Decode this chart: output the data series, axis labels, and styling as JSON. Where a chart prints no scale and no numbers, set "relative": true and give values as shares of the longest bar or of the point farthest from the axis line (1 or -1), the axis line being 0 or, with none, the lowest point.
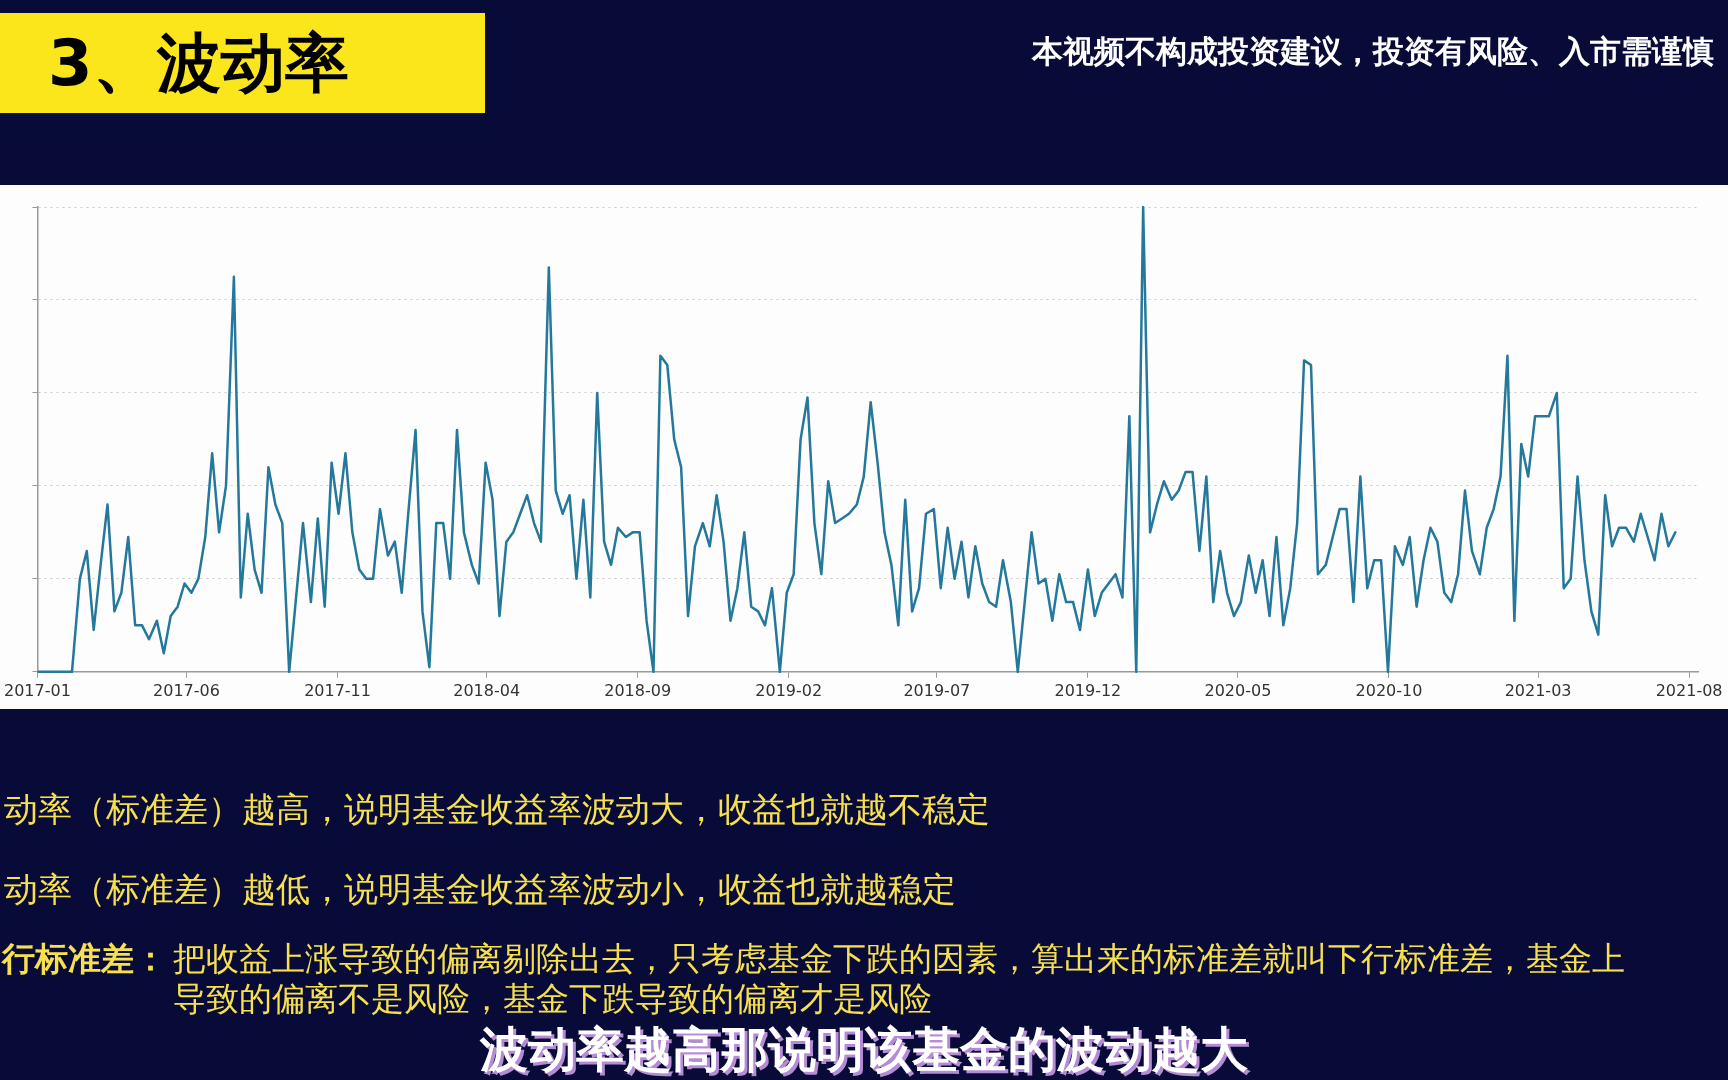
{
  "chart_data": {
    "type": "line",
    "title": "3、波动率",
    "annotations": [
      "本视频不构成投资建议，投资有风险、入市需谨慎",
      "动率（标准差）越高，说明基金收益率波动大，收益也就越不稳定",
      "动率（标准差）越低，说明基金收益率波动小，收益也就越稳定",
      "行标准差：",
      "把收益上涨导致的偏离剔除出去，只考虑基金下跌的因素，算出来的标准差就叫下行标准差，基金上",
      "导致的偏离不是风险，基金下跌导致的偏离才是风险",
      "波动率越高那说明该基金的波动越大"
    ],
    "x": [
      "2017-01-01",
      "2017-01-08",
      "2017-01-15",
      "2017-01-22",
      "2017-01-29",
      "2017-02-05",
      "2017-02-13",
      "2017-02-20",
      "2017-02-27",
      "2017-03-06",
      "2017-03-13",
      "2017-03-20",
      "2017-03-27",
      "2017-04-03",
      "2017-04-10",
      "2017-04-17",
      "2017-04-24",
      "2017-05-02",
      "2017-05-09",
      "2017-05-16",
      "2017-05-23",
      "2017-05-30",
      "2017-06-06",
      "2017-06-13",
      "2017-06-20",
      "2017-06-27",
      "2017-07-04",
      "2017-07-11",
      "2017-07-19",
      "2017-07-26",
      "2017-08-02",
      "2017-08-09",
      "2017-08-16",
      "2017-08-23",
      "2017-08-30",
      "2017-09-06",
      "2017-09-13",
      "2017-09-20",
      "2017-09-27",
      "2017-10-05",
      "2017-10-12",
      "2017-10-19",
      "2017-10-26",
      "2017-11-02",
      "2017-11-09",
      "2017-11-16",
      "2017-11-23",
      "2017-11-30",
      "2017-12-07",
      "2017-12-14",
      "2017-12-22",
      "2017-12-29",
      "2018-01-05",
      "2018-01-12",
      "2018-01-19",
      "2018-01-26",
      "2018-02-02",
      "2018-02-09",
      "2018-02-16",
      "2018-02-23",
      "2018-03-02",
      "2018-03-09",
      "2018-03-17",
      "2018-03-24",
      "2018-03-31",
      "2018-04-07",
      "2018-04-14",
      "2018-04-21",
      "2018-04-28",
      "2018-05-05",
      "2018-05-12",
      "2018-05-19",
      "2018-05-26",
      "2018-06-03",
      "2018-06-10",
      "2018-06-17",
      "2018-06-24",
      "2018-07-01",
      "2018-07-08",
      "2018-07-15",
      "2018-07-22",
      "2018-07-29",
      "2018-08-05",
      "2018-08-12",
      "2018-08-20",
      "2018-08-27",
      "2018-09-03",
      "2018-09-10",
      "2018-09-17",
      "2018-09-24",
      "2018-10-01",
      "2018-10-08",
      "2018-10-15",
      "2018-10-22",
      "2018-10-29",
      "2018-11-06",
      "2018-11-13",
      "2018-11-20",
      "2018-11-27",
      "2018-12-04",
      "2018-12-11",
      "2018-12-18",
      "2018-12-25",
      "2019-01-01",
      "2019-01-08",
      "2019-01-15",
      "2019-01-23",
      "2019-01-30",
      "2019-02-06",
      "2019-02-13",
      "2019-02-20",
      "2019-02-27",
      "2019-03-06",
      "2019-03-13",
      "2019-03-20",
      "2019-03-27",
      "2019-04-03",
      "2019-04-11",
      "2019-04-18",
      "2019-04-25",
      "2019-05-02",
      "2019-05-09",
      "2019-05-16",
      "2019-05-23",
      "2019-05-30",
      "2019-06-06",
      "2019-06-13",
      "2019-06-20",
      "2019-06-28",
      "2019-07-05",
      "2019-07-12",
      "2019-07-19",
      "2019-07-26",
      "2019-08-02",
      "2019-08-09",
      "2019-08-16",
      "2019-08-23",
      "2019-08-30",
      "2019-09-06",
      "2019-09-14",
      "2019-09-21",
      "2019-09-28",
      "2019-10-05",
      "2019-10-12",
      "2019-10-19",
      "2019-10-26",
      "2019-11-02",
      "2019-11-09",
      "2019-11-16",
      "2019-11-23",
      "2019-12-01",
      "2019-12-08",
      "2019-12-15",
      "2019-12-22",
      "2019-12-29",
      "2020-01-05",
      "2020-01-12",
      "2020-01-19",
      "2020-01-26",
      "2020-02-02",
      "2020-02-09",
      "2020-02-16",
      "2020-02-24",
      "2020-03-02",
      "2020-03-09",
      "2020-03-16",
      "2020-03-23",
      "2020-03-30",
      "2020-04-06",
      "2020-04-13",
      "2020-04-20",
      "2020-04-27",
      "2020-05-04",
      "2020-05-12",
      "2020-05-19",
      "2020-05-26",
      "2020-06-02",
      "2020-06-09",
      "2020-06-16",
      "2020-06-23",
      "2020-06-30",
      "2020-07-07",
      "2020-07-14",
      "2020-07-21",
      "2020-07-29",
      "2020-08-05",
      "2020-08-12",
      "2020-08-19",
      "2020-08-26",
      "2020-09-02",
      "2020-09-09",
      "2020-09-16",
      "2020-09-23",
      "2020-09-30",
      "2020-10-07",
      "2020-10-15",
      "2020-10-22",
      "2020-10-29",
      "2020-11-05",
      "2020-11-12",
      "2020-11-19",
      "2020-11-26",
      "2020-12-03",
      "2020-12-10",
      "2020-12-17",
      "2020-12-24",
      "2021-01-01",
      "2021-01-08",
      "2021-01-15",
      "2021-01-22",
      "2021-01-29",
      "2021-02-05",
      "2021-02-12",
      "2021-02-19",
      "2021-02-26",
      "2021-03-05",
      "2021-03-12",
      "2021-03-20",
      "2021-03-27",
      "2021-04-03",
      "2021-04-10",
      "2021-04-17",
      "2021-04-24",
      "2021-05-01",
      "2021-05-08",
      "2021-05-15",
      "2021-05-22",
      "2021-05-29",
      "2021-06-06",
      "2021-06-13",
      "2021-06-20",
      "2021-06-27",
      "2021-07-04",
      "2021-07-11",
      "2021-07-18"
    ],
    "values": [
      0,
      0,
      0,
      0,
      0,
      0,
      0.2,
      0.26,
      0.09,
      0.23,
      0.36,
      0.13,
      0.17,
      0.29,
      0.1,
      0.1,
      0.07,
      0.11,
      0.04,
      0.12,
      0.14,
      0.19,
      0.17,
      0.2,
      0.29,
      0.47,
      0.3,
      0.4,
      0.85,
      0.16,
      0.34,
      0.22,
      0.17,
      0.44,
      0.36,
      0.32,
      0,
      0.16,
      0.32,
      0.15,
      0.33,
      0.14,
      0.45,
      0.34,
      0.47,
      0.3,
      0.22,
      0.2,
      0.2,
      0.35,
      0.25,
      0.28,
      0.17,
      0.35,
      0.52,
      0.13,
      0.01,
      0.32,
      0.32,
      0.2,
      0.52,
      0.3,
      0.23,
      0.19,
      0.45,
      0.37,
      0.12,
      0.28,
      0.3,
      0.34,
      0.38,
      0.32,
      0.28,
      0.87,
      0.39,
      0.34,
      0.38,
      0.2,
      0.37,
      0.16,
      0.6,
      0.28,
      0.23,
      0.31,
      0.29,
      0.3,
      0.3,
      0.11,
      0,
      0.68,
      0.66,
      0.5,
      0.44,
      0.12,
      0.27,
      0.32,
      0.27,
      0.38,
      0.28,
      0.11,
      0.18,
      0.3,
      0.14,
      0.13,
      0.1,
      0.18,
      0,
      0.17,
      0.21,
      0.5,
      0.59,
      0.32,
      0.21,
      0.41,
      0.32,
      0.33,
      0.34,
      0.36,
      0.42,
      0.58,
      0.45,
      0.3,
      0.23,
      0.1,
      0.37,
      0.13,
      0.18,
      0.34,
      0.35,
      0.18,
      0.31,
      0.2,
      0.28,
      0.16,
      0.27,
      0.19,
      0.15,
      0.14,
      0.24,
      0.15,
      0,
      0.15,
      0.3,
      0.19,
      0.2,
      0.11,
      0.21,
      0.15,
      0.15,
      0.09,
      0.22,
      0.12,
      0.17,
      0.19,
      0.21,
      0.16,
      0.55,
      0,
      1,
      0.3,
      0.36,
      0.41,
      0.37,
      0.39,
      0.43,
      0.43,
      0.26,
      0.42,
      0.15,
      0.26,
      0.17,
      0.12,
      0.15,
      0.25,
      0.17,
      0.24,
      0.12,
      0.29,
      0.1,
      0.18,
      0.32,
      0.67,
      0.66,
      0.21,
      0.23,
      0.29,
      0.35,
      0.35,
      0.15,
      0.42,
      0.18,
      0.24,
      0.24,
      0,
      0.27,
      0.23,
      0.29,
      0.14,
      0.24,
      0.31,
      0.28,
      0.17,
      0.15,
      0.21,
      0.39,
      0.26,
      0.21,
      0.31,
      0.35,
      0.42,
      0.68,
      0.11,
      0.49,
      0.42,
      0.55,
      0.55,
      0.55,
      0.6,
      0.18,
      0.2,
      0.42,
      0.24,
      0.13,
      0.08,
      0.38,
      0.27,
      0.31,
      0.31,
      0.28,
      0.34,
      0.29,
      0.24,
      0.34,
      0.27,
      0.3
    ],
    "color": "#24789b",
    "relative": true,
    "xlim": [
      "2017-01-01",
      "2021-08-10"
    ],
    "xticks": [
      "2017-01",
      "2017-06",
      "2017-11",
      "2018-04",
      "2018-09",
      "2019-02",
      "2019-07",
      "2019-12",
      "2020-05",
      "2020-10",
      "2021-03",
      "2021-08"
    ],
    "grid": "y"
  }
}
